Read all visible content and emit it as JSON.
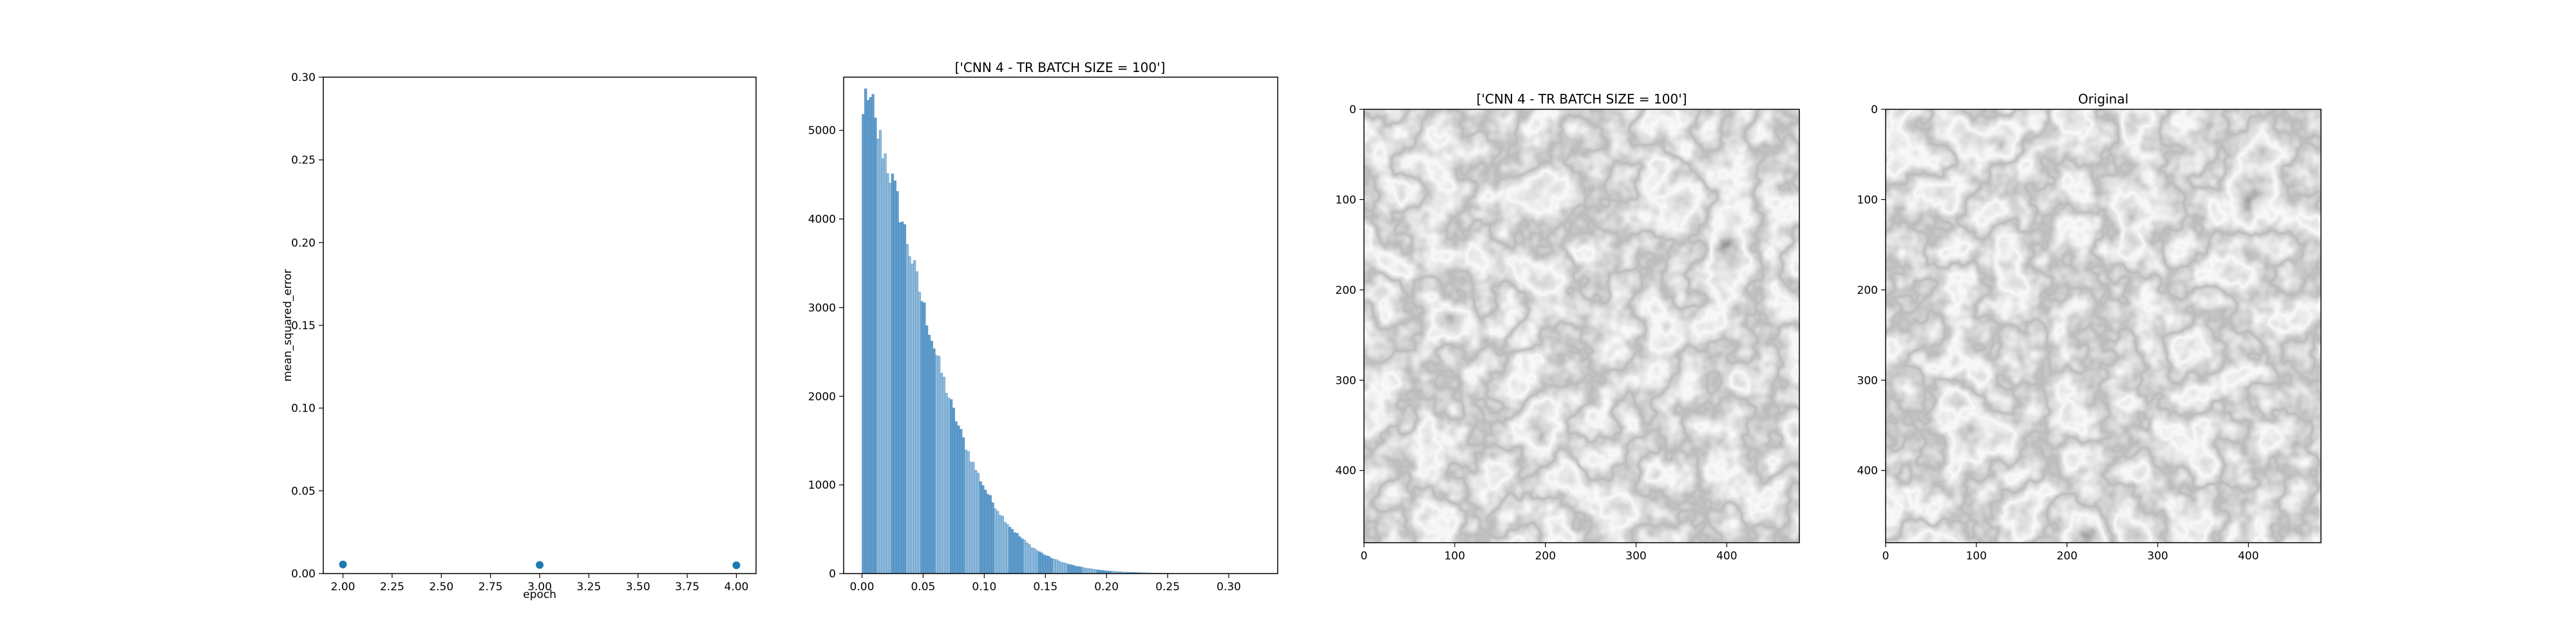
{
  "chart_data": [
    {
      "type": "scatter",
      "title": "",
      "xlabel": "epoch",
      "ylabel": "mean_squared_error",
      "xlim": [
        1.9,
        4.1
      ],
      "ylim": [
        0.0,
        0.3
      ],
      "xticks": [
        "2.00",
        "2.25",
        "2.50",
        "2.75",
        "3.00",
        "3.25",
        "3.50",
        "3.75",
        "4.00"
      ],
      "yticks": [
        "0.00",
        "0.05",
        "0.10",
        "0.15",
        "0.20",
        "0.25",
        "0.30"
      ],
      "x": [
        2,
        3,
        4
      ],
      "y": [
        0.0055,
        0.0052,
        0.005
      ],
      "color": "#1f77b4",
      "grid": false
    },
    {
      "type": "bar",
      "title": "['CNN 4 - TR BATCH SIZE = 100']",
      "xlabel": "",
      "ylabel": "",
      "xlim": [
        -0.015,
        0.34
      ],
      "ylim": [
        0,
        5600
      ],
      "xticks": [
        "0.00",
        "0.05",
        "0.10",
        "0.15",
        "0.20",
        "0.25",
        "0.30"
      ],
      "yticks": [
        "0",
        "1000",
        "2000",
        "3000",
        "4000",
        "5000"
      ],
      "bin_start": 0.0,
      "bin_width": 0.002,
      "peak_count": 5300,
      "color": "#1f77b4",
      "grid": false
    },
    {
      "type": "image",
      "title": "['CNN 4 - TR BATCH SIZE = 100']",
      "xlim": [
        0,
        480
      ],
      "ylim": [
        480,
        0
      ],
      "xticks": [
        "0",
        "100",
        "200",
        "300",
        "400"
      ],
      "yticks": [
        "0",
        "100",
        "200",
        "300",
        "400"
      ],
      "colormap": "gray"
    },
    {
      "type": "image",
      "title": "Original",
      "xlim": [
        0,
        480
      ],
      "ylim": [
        480,
        0
      ],
      "xticks": [
        "0",
        "100",
        "200",
        "300",
        "400"
      ],
      "yticks": [
        "0",
        "100",
        "200",
        "300",
        "400"
      ],
      "colormap": "gray"
    }
  ]
}
